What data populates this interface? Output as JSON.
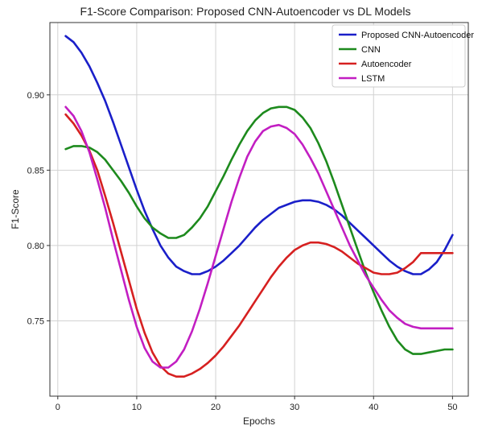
{
  "chart_data": {
    "type": "line",
    "title": "F1-Score Comparison: Proposed CNN-Autoencoder vs DL Models",
    "xlabel": "Epochs",
    "ylabel": "F1-Score",
    "xlim": [
      -1,
      52
    ],
    "ylim": [
      0.7,
      0.948
    ],
    "xticks": [
      0,
      10,
      20,
      30,
      40,
      50
    ],
    "yticks": [
      0.75,
      0.8,
      0.85,
      0.9
    ],
    "ytick_labels": [
      "0.75",
      "0.80",
      "0.85",
      "0.90"
    ],
    "grid": true,
    "legend_position": "top-right",
    "series": [
      {
        "name": "Proposed CNN-Autoencoder",
        "color": "#1a1fc9",
        "x": [
          1,
          2,
          3,
          4,
          5,
          6,
          7,
          8,
          9,
          10,
          11,
          12,
          13,
          14,
          15,
          16,
          17,
          18,
          19,
          20,
          21,
          22,
          23,
          24,
          25,
          26,
          27,
          28,
          29,
          30,
          31,
          32,
          33,
          34,
          35,
          36,
          37,
          38,
          39,
          40,
          41,
          42,
          43,
          44,
          45,
          46,
          47,
          48,
          49,
          50
        ],
        "values": [
          0.939,
          0.935,
          0.928,
          0.919,
          0.908,
          0.896,
          0.882,
          0.867,
          0.852,
          0.837,
          0.823,
          0.811,
          0.8,
          0.792,
          0.786,
          0.783,
          0.781,
          0.781,
          0.783,
          0.786,
          0.79,
          0.795,
          0.8,
          0.806,
          0.812,
          0.817,
          0.821,
          0.825,
          0.827,
          0.829,
          0.83,
          0.83,
          0.829,
          0.827,
          0.824,
          0.82,
          0.815,
          0.81,
          0.805,
          0.8,
          0.795,
          0.79,
          0.786,
          0.783,
          0.781,
          0.781,
          0.784,
          0.789,
          0.797,
          0.807
        ]
      },
      {
        "name": "CNN",
        "color": "#1d8a1d",
        "x": [
          1,
          2,
          3,
          4,
          5,
          6,
          7,
          8,
          9,
          10,
          11,
          12,
          13,
          14,
          15,
          16,
          17,
          18,
          19,
          20,
          21,
          22,
          23,
          24,
          25,
          26,
          27,
          28,
          29,
          30,
          31,
          32,
          33,
          34,
          35,
          36,
          37,
          38,
          39,
          40,
          41,
          42,
          43,
          44,
          45,
          46,
          47,
          48,
          49,
          50
        ],
        "values": [
          0.864,
          0.866,
          0.866,
          0.865,
          0.862,
          0.857,
          0.85,
          0.843,
          0.835,
          0.826,
          0.818,
          0.812,
          0.808,
          0.805,
          0.805,
          0.807,
          0.812,
          0.818,
          0.826,
          0.836,
          0.846,
          0.857,
          0.867,
          0.876,
          0.883,
          0.888,
          0.891,
          0.892,
          0.892,
          0.89,
          0.885,
          0.878,
          0.868,
          0.856,
          0.842,
          0.827,
          0.812,
          0.797,
          0.782,
          0.769,
          0.757,
          0.746,
          0.737,
          0.731,
          0.728,
          0.728,
          0.729,
          0.73,
          0.731,
          0.731
        ]
      },
      {
        "name": "Autoencoder",
        "color": "#d62020",
        "x": [
          1,
          2,
          3,
          4,
          5,
          6,
          7,
          8,
          9,
          10,
          11,
          12,
          13,
          14,
          15,
          16,
          17,
          18,
          19,
          20,
          21,
          22,
          23,
          24,
          25,
          26,
          27,
          28,
          29,
          30,
          31,
          32,
          33,
          34,
          35,
          36,
          37,
          38,
          39,
          40,
          41,
          42,
          43,
          44,
          45,
          46,
          47,
          48,
          49,
          50
        ],
        "values": [
          0.887,
          0.881,
          0.873,
          0.863,
          0.85,
          0.833,
          0.815,
          0.796,
          0.777,
          0.758,
          0.742,
          0.729,
          0.72,
          0.715,
          0.713,
          0.713,
          0.715,
          0.718,
          0.722,
          0.727,
          0.733,
          0.74,
          0.747,
          0.755,
          0.763,
          0.771,
          0.779,
          0.786,
          0.792,
          0.797,
          0.8,
          0.802,
          0.802,
          0.801,
          0.799,
          0.796,
          0.792,
          0.788,
          0.785,
          0.782,
          0.781,
          0.781,
          0.782,
          0.785,
          0.789,
          0.795,
          0.795,
          0.795,
          0.795,
          0.795
        ]
      },
      {
        "name": "LSTM",
        "color": "#c21ec2",
        "x": [
          1,
          2,
          3,
          4,
          5,
          6,
          7,
          8,
          9,
          10,
          11,
          12,
          13,
          14,
          15,
          16,
          17,
          18,
          19,
          20,
          21,
          22,
          23,
          24,
          25,
          26,
          27,
          28,
          29,
          30,
          31,
          32,
          33,
          34,
          35,
          36,
          37,
          38,
          39,
          40,
          41,
          42,
          43,
          44,
          45,
          46,
          47,
          48,
          49,
          50
        ],
        "values": [
          0.892,
          0.886,
          0.876,
          0.862,
          0.844,
          0.825,
          0.804,
          0.784,
          0.764,
          0.746,
          0.732,
          0.723,
          0.719,
          0.719,
          0.723,
          0.731,
          0.743,
          0.758,
          0.775,
          0.793,
          0.811,
          0.829,
          0.845,
          0.859,
          0.869,
          0.876,
          0.879,
          0.88,
          0.878,
          0.874,
          0.867,
          0.858,
          0.848,
          0.836,
          0.824,
          0.812,
          0.8,
          0.79,
          0.78,
          0.772,
          0.764,
          0.757,
          0.752,
          0.748,
          0.746,
          0.745,
          0.745,
          0.745,
          0.745,
          0.745
        ]
      }
    ]
  }
}
